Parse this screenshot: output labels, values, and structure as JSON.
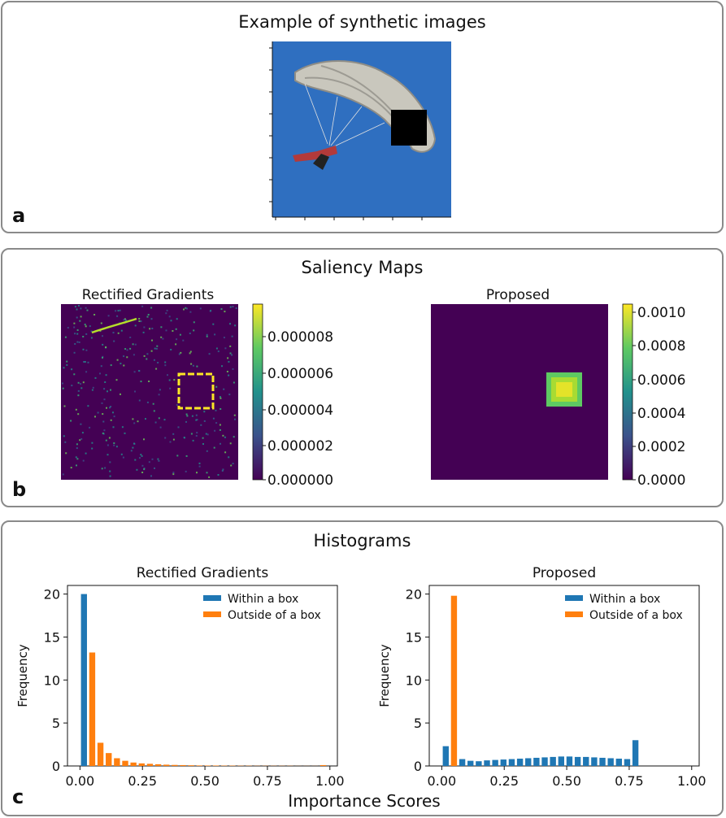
{
  "panel_a": {
    "label": "a",
    "title": "Example of synthetic images"
  },
  "panel_b": {
    "label": "b",
    "title": "Saliency Maps",
    "left_title": "Rectified Gradients",
    "right_title": "Proposed",
    "left_colorbar_ticks": [
      "0.000008",
      "0.000006",
      "0.000004",
      "0.000002",
      "0.000000"
    ],
    "right_colorbar_ticks": [
      "0.0010",
      "0.0008",
      "0.0006",
      "0.0004",
      "0.0002",
      "0.0000"
    ]
  },
  "panel_c": {
    "label": "c",
    "title": "Histograms",
    "xlabel_shared": "Importance Scores"
  },
  "colors": {
    "within": "#1f77b4",
    "outside": "#ff7f0e",
    "sky": "#2f6fc0",
    "viridis_dark": "#440154",
    "viridis_yellow": "#fde725"
  },
  "chart_data": [
    {
      "type": "bar",
      "title": "Rectified Gradients",
      "xlabel": "",
      "ylabel": "Frequency",
      "xlim": [
        -0.05,
        1.03
      ],
      "ylim": [
        0,
        21
      ],
      "xticks": [
        "0.00",
        "0.25",
        "0.50",
        "0.75",
        "1.00"
      ],
      "yticks": [
        "0",
        "5",
        "10",
        "15",
        "20"
      ],
      "bin_centers": [
        0.016,
        0.049,
        0.082,
        0.115,
        0.148,
        0.181,
        0.214,
        0.247,
        0.28,
        0.313,
        0.346,
        0.379,
        0.412,
        0.445,
        0.478,
        0.511,
        0.544,
        0.577,
        0.61,
        0.643,
        0.676,
        0.709,
        0.742,
        0.775,
        0.808,
        0.841,
        0.874,
        0.907,
        0.94,
        0.973
      ],
      "series": [
        {
          "name": "Within a box",
          "values": [
            20,
            0,
            0,
            0,
            0,
            0,
            0,
            0,
            0,
            0,
            0,
            0,
            0,
            0,
            0,
            0,
            0,
            0,
            0,
            0,
            0,
            0,
            0,
            0,
            0,
            0,
            0,
            0,
            0,
            0
          ]
        },
        {
          "name": "Outside of a box",
          "values": [
            0,
            13.2,
            2.7,
            1.5,
            0.9,
            0.6,
            0.4,
            0.3,
            0.25,
            0.2,
            0.15,
            0.12,
            0.1,
            0.08,
            0.06,
            0.05,
            0.05,
            0.04,
            0.04,
            0.03,
            0.03,
            0.02,
            0.02,
            0.02,
            0.02,
            0.02,
            0.01,
            0.01,
            0.01,
            0.1
          ]
        }
      ],
      "legend": "top-right"
    },
    {
      "type": "bar",
      "title": "Proposed",
      "xlabel": "",
      "ylabel": "Frequency",
      "xlim": [
        -0.05,
        1.03
      ],
      "ylim": [
        0,
        21
      ],
      "xticks": [
        "0.00",
        "0.25",
        "0.50",
        "0.75",
        "1.00"
      ],
      "yticks": [
        "0",
        "5",
        "10",
        "15",
        "20"
      ],
      "bin_centers": [
        0.016,
        0.049,
        0.082,
        0.115,
        0.148,
        0.181,
        0.214,
        0.247,
        0.28,
        0.313,
        0.346,
        0.379,
        0.412,
        0.445,
        0.478,
        0.511,
        0.544,
        0.577,
        0.61,
        0.643,
        0.676,
        0.709,
        0.742,
        0.775,
        0.808,
        0.841,
        0.874,
        0.907,
        0.94,
        0.973
      ],
      "series": [
        {
          "name": "Within a box",
          "values": [
            2.3,
            0,
            0.8,
            0.6,
            0.55,
            0.65,
            0.7,
            0.75,
            0.8,
            0.85,
            0.9,
            0.95,
            1.0,
            1.05,
            1.1,
            1.1,
            1.05,
            1.05,
            1.0,
            0.95,
            0.9,
            0.85,
            0.8,
            3.0,
            0,
            0,
            0,
            0,
            0,
            0
          ]
        },
        {
          "name": "Outside of a box",
          "values": [
            0,
            19.8,
            0,
            0,
            0,
            0,
            0,
            0,
            0,
            0,
            0,
            0,
            0,
            0,
            0,
            0,
            0,
            0,
            0,
            0,
            0,
            0,
            0,
            0,
            0,
            0,
            0,
            0,
            0,
            0
          ]
        }
      ],
      "legend": "top-right"
    }
  ]
}
